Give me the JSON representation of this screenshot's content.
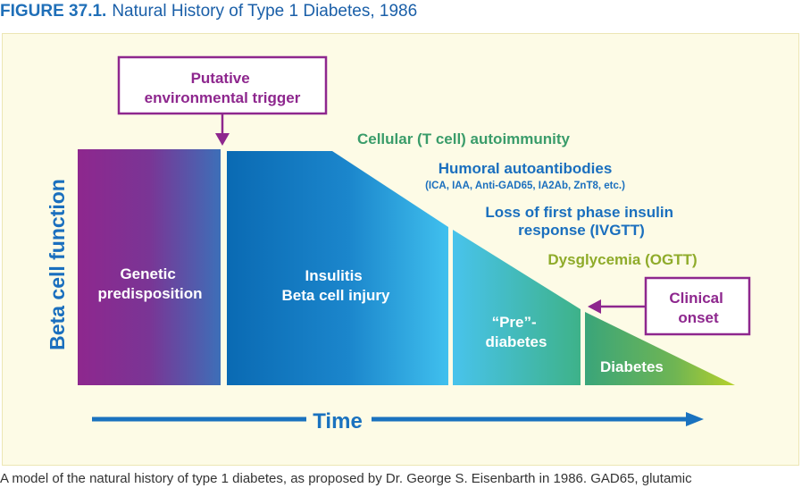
{
  "figure": {
    "number": "FIGURE 37.1.",
    "title": "Natural History of Type 1 Diabetes, 1986"
  },
  "diagram": {
    "y_axis_label": "Beta cell function",
    "x_axis_label": "Time",
    "trigger_box": [
      "Putative",
      "environmental trigger"
    ],
    "onset_box": [
      "Clinical",
      "onset"
    ],
    "stages": {
      "genetic": [
        "Genetic",
        "predisposition"
      ],
      "insulitis": [
        "Insulitis",
        "Beta cell injury"
      ],
      "prediabetes": [
        "“Pre”-",
        "diabetes"
      ],
      "diabetes": [
        "Diabetes"
      ]
    },
    "annotations": {
      "cellular": "Cellular (T cell) autoimmunity",
      "humoral": "Humoral autoantibodies",
      "humoral_detail": "(ICA, IAA, Anti-GAD65, IA2Ab, ZnT8, etc.)",
      "loss_first_phase": [
        "Loss of first phase insulin",
        "response (IVGTT)"
      ],
      "dysglycemia": "Dysglycemia (OGTT)"
    }
  },
  "colors": {
    "purple": "#8e278e",
    "blue": "#1a78c2",
    "green": "#3aa06b",
    "olive": "#8fb02b"
  },
  "caption": "A model of the natural history of type 1 diabetes, as proposed by Dr. George S. Eisenbarth in 1986. GAD65, glutamic"
}
